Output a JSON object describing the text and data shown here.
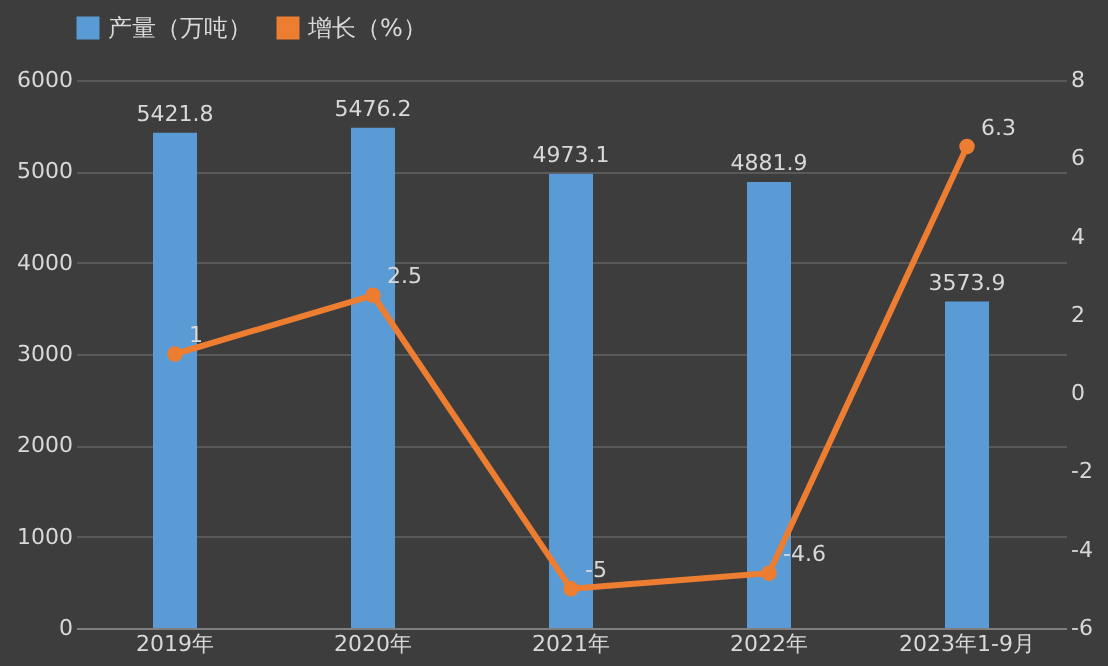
{
  "chart_data": {
    "type": "bar",
    "categories": [
      "2019年",
      "2020年",
      "2021年",
      "2022年",
      "2023年1-9月"
    ],
    "series": [
      {
        "name": "产量（万吨）",
        "color": "#5b9bd5",
        "values": [
          5421.8,
          5476.2,
          4973.1,
          4881.9,
          3573.9
        ]
      },
      {
        "name": "增长（%）",
        "type": "line",
        "axis": "y2",
        "color": "#ed7d31",
        "values": [
          1,
          2.5,
          -5,
          -4.6,
          6.3
        ]
      }
    ],
    "ylim": [
      0,
      6000
    ],
    "yticks": [
      0,
      1000,
      2000,
      3000,
      4000,
      5000,
      6000
    ],
    "y2lim": [
      -6,
      8
    ],
    "y2ticks": [
      -6,
      -4,
      -2,
      0,
      2,
      4,
      6,
      8
    ],
    "data_labels": true,
    "legend": "top",
    "grid": "y",
    "marker": "circle"
  }
}
